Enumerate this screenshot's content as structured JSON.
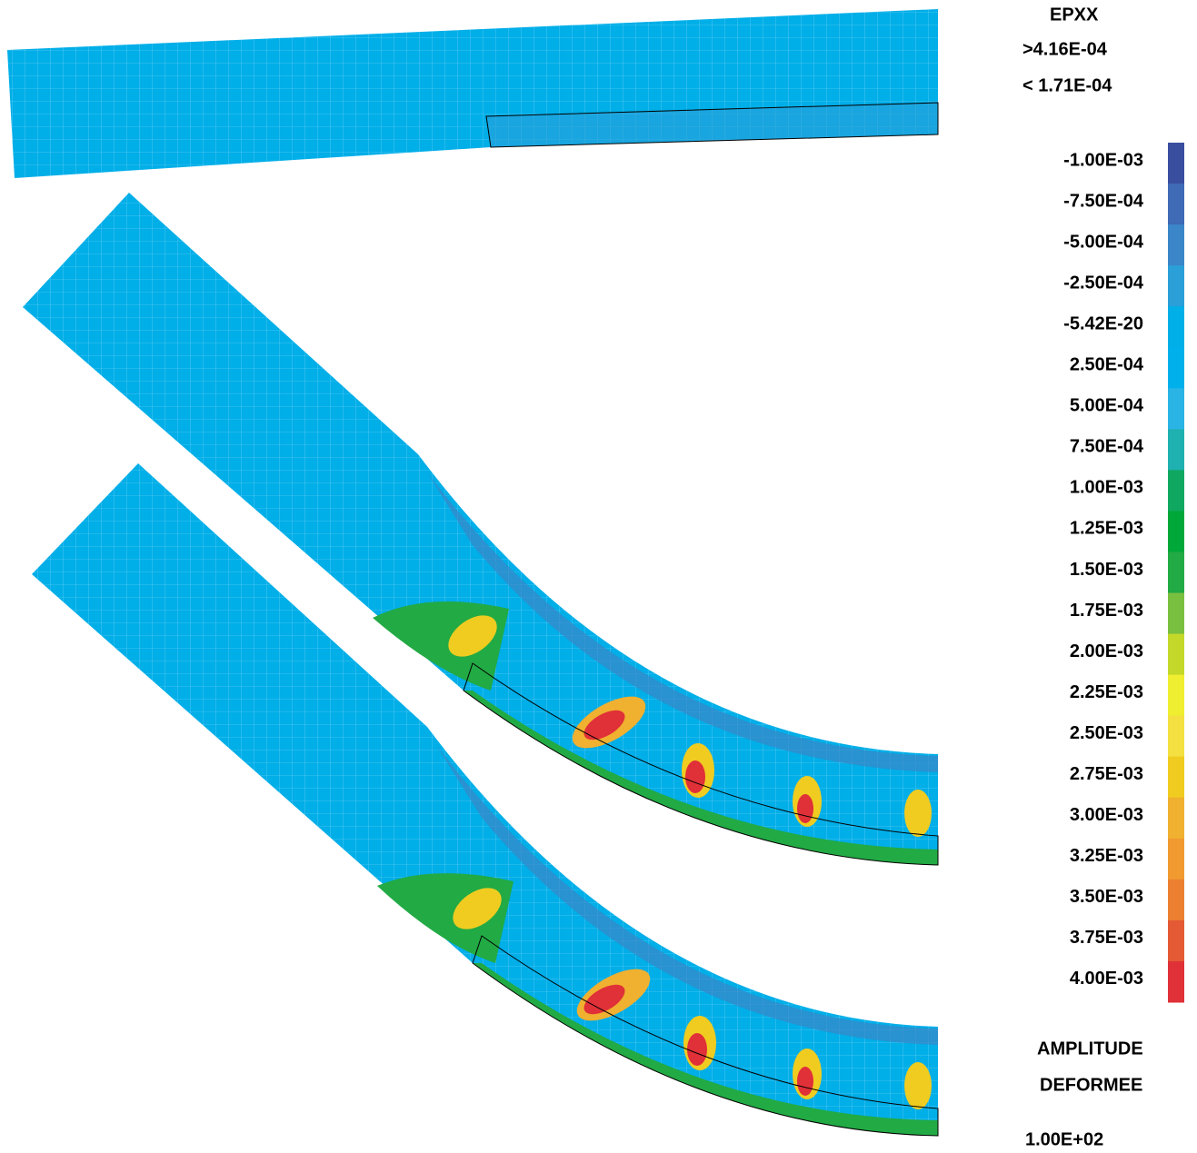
{
  "legend": {
    "title": "EPXX",
    "max": ">4.16E-04",
    "min": "< 1.71E-04",
    "levels": [
      {
        "label": "-1.00E-03",
        "color": "#3a4ea0"
      },
      {
        "label": "-7.50E-04",
        "color": "#3f6ab5"
      },
      {
        "label": "-5.00E-04",
        "color": "#3a86c8"
      },
      {
        "label": "-2.50E-04",
        "color": "#2a9fd8"
      },
      {
        "label": "-5.42E-20",
        "color": "#00aee8"
      },
      {
        "label": "2.50E-04",
        "color": "#00b0ea"
      },
      {
        "label": "5.00E-04",
        "color": "#2ab4e6"
      },
      {
        "label": "7.50E-04",
        "color": "#1fb0b0"
      },
      {
        "label": "1.00E-03",
        "color": "#10a860"
      },
      {
        "label": "1.25E-03",
        "color": "#00a83a"
      },
      {
        "label": "1.50E-03",
        "color": "#22aa44"
      },
      {
        "label": "1.75E-03",
        "color": "#7ac040"
      },
      {
        "label": "2.00E-03",
        "color": "#c4d82a"
      },
      {
        "label": "2.25E-03",
        "color": "#f0ee30"
      },
      {
        "label": "2.50E-03",
        "color": "#f4e040"
      },
      {
        "label": "2.75E-03",
        "color": "#f0cc20"
      },
      {
        "label": "3.00E-03",
        "color": "#f0b030"
      },
      {
        "label": "3.25E-03",
        "color": "#f09a30"
      },
      {
        "label": "3.50E-03",
        "color": "#ec8030"
      },
      {
        "label": "3.75E-03",
        "color": "#e45a35"
      },
      {
        "label": "4.00E-03",
        "color": "#e03038"
      }
    ],
    "amplitude_title": [
      "AMPLITUDE",
      "DEFORMEE"
    ],
    "amplitude": "1.00E+02"
  }
}
